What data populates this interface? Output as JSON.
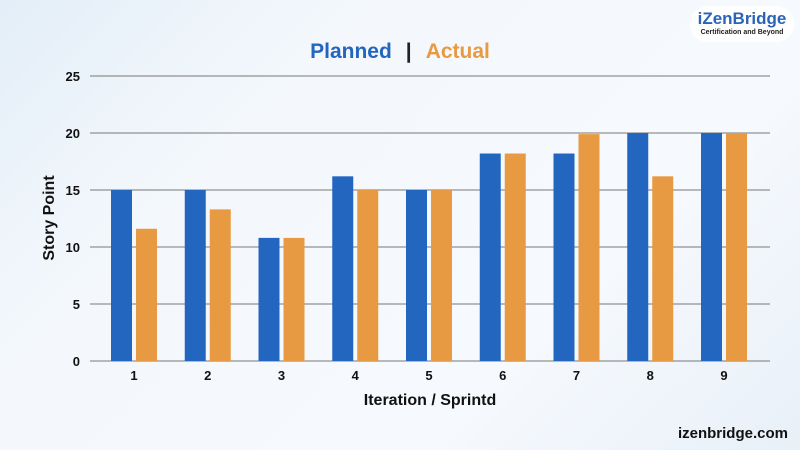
{
  "logo": {
    "name": "iZenBridge",
    "tagline": "Certification and Beyond"
  },
  "footer": "izenbridge.com",
  "chart_data": {
    "type": "bar",
    "title": {
      "planned": "Planned",
      "separator": "|",
      "actual": "Actual"
    },
    "xlabel": "Iteration / Sprintd",
    "ylabel": "Story Point",
    "ylim": [
      0,
      25
    ],
    "yticks": [
      0,
      5,
      10,
      15,
      20,
      25
    ],
    "grid": true,
    "categories": [
      "1",
      "2",
      "3",
      "4",
      "5",
      "6",
      "7",
      "8",
      "9"
    ],
    "series": [
      {
        "name": "Planned",
        "color": "#2366c0",
        "values": [
          15,
          15,
          10.8,
          16.2,
          15,
          18.2,
          18.2,
          20,
          20
        ]
      },
      {
        "name": "Actual",
        "color": "#e89a42",
        "values": [
          11.6,
          13.3,
          10.8,
          15,
          15,
          18.2,
          19.9,
          16.2,
          20
        ]
      }
    ]
  }
}
